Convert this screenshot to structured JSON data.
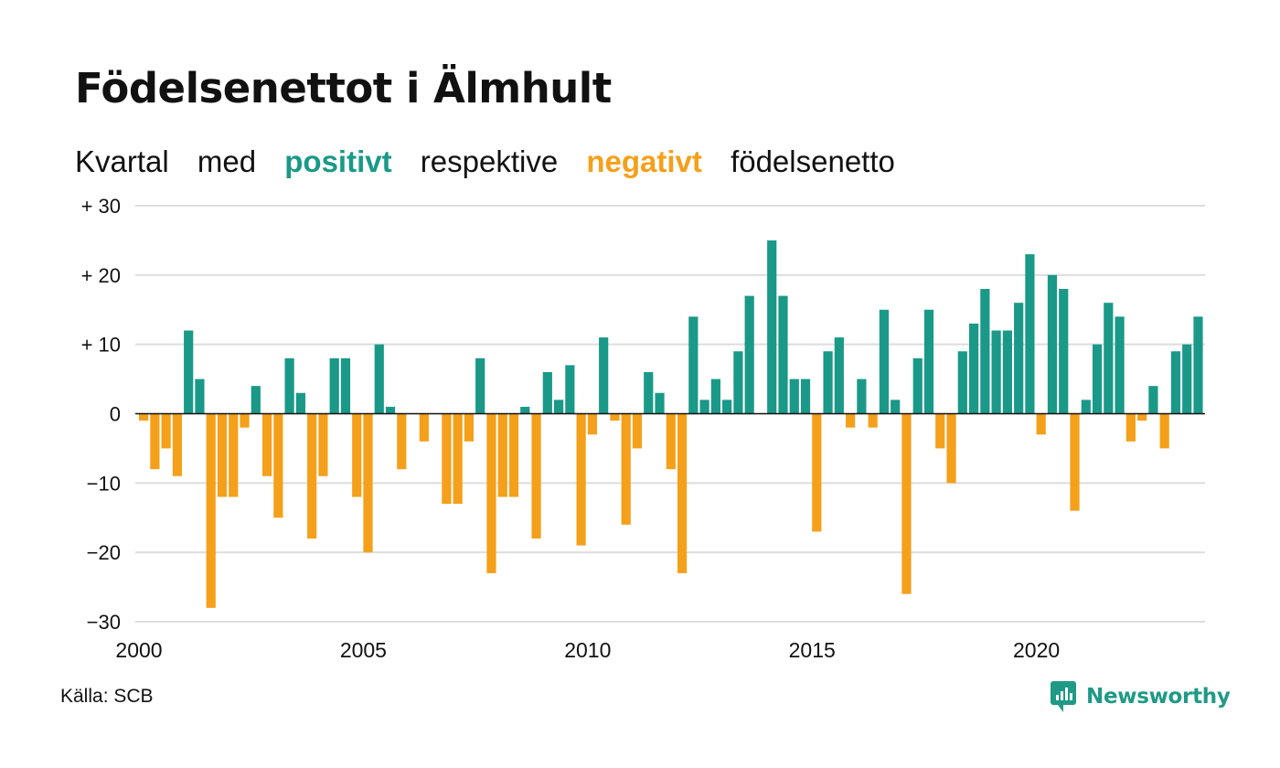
{
  "title": "Födelsenettot i Älmhult",
  "subtitle": {
    "part1": "Kvartal",
    "part2": "med",
    "positive_word": "positivt",
    "part3": "respektive",
    "negative_word": "negativt",
    "part4": "födelsenetto"
  },
  "source": "Källa: SCB",
  "brand": "Newsworthy",
  "colors": {
    "positive": "#1a9988",
    "negative": "#f5a01a",
    "grid": "#dddddd",
    "axis": "#111111",
    "brand": "#1f9a86"
  },
  "chart_data": {
    "type": "bar",
    "x_start": "2000 Q1",
    "ylim": [
      -30,
      30
    ],
    "yticks": [
      {
        "value": 30,
        "label": "+ 30"
      },
      {
        "value": 20,
        "label": "+ 20"
      },
      {
        "value": 10,
        "label": "+ 10"
      },
      {
        "value": 0,
        "label": "0"
      },
      {
        "value": -10,
        "label": "−10"
      },
      {
        "value": -20,
        "label": "−20"
      },
      {
        "value": -30,
        "label": "−30"
      }
    ],
    "xticks": [
      "2000",
      "2005",
      "2010",
      "2015",
      "2020"
    ],
    "grid": true,
    "values": [
      -1,
      -8,
      -5,
      -9,
      12,
      5,
      -28,
      -12,
      -12,
      -2,
      4,
      -9,
      -15,
      8,
      3,
      -18,
      -9,
      8,
      8,
      -12,
      -20,
      10,
      1,
      -8,
      0,
      -4,
      0,
      -13,
      -13,
      -4,
      8,
      -23,
      -12,
      -12,
      1,
      -18,
      6,
      2,
      7,
      -19,
      -3,
      11,
      -1,
      -16,
      -5,
      6,
      3,
      -8,
      -23,
      14,
      2,
      5,
      2,
      9,
      17,
      0,
      25,
      17,
      5,
      5,
      -17,
      9,
      11,
      -2,
      5,
      -2,
      15,
      2,
      -26,
      8,
      15,
      -5,
      -10,
      9,
      13,
      18,
      12,
      12,
      16,
      23,
      -3,
      20,
      18,
      -14,
      2,
      10,
      16,
      14,
      -4,
      -1,
      4,
      -5,
      9,
      10,
      14
    ]
  }
}
